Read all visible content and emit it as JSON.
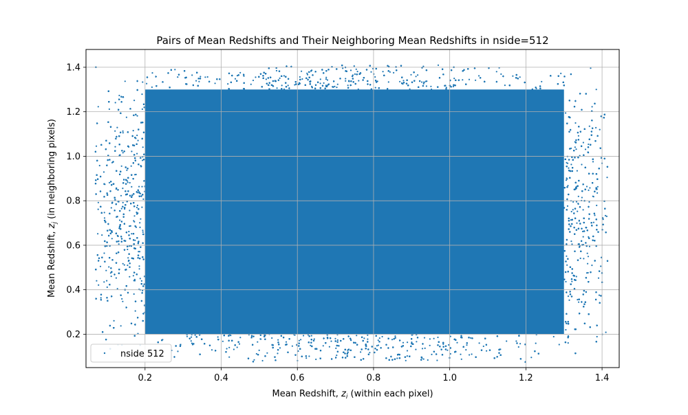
{
  "chart_data": {
    "type": "scatter",
    "title": "Pairs of Mean Redshifts and Their Neighboring Mean Redshifts in nside=512",
    "xlabel_main": "Mean Redshift, ",
    "xlabel_sym": "z",
    "xlabel_sub": "i",
    "xlabel_tail": " (within each pixel)",
    "ylabel_main": "Mean Redshift, ",
    "ylabel_sym": "z",
    "ylabel_sub": "j",
    "ylabel_tail": " (in neighboring pixels)",
    "xlim": [
      0.045,
      1.445
    ],
    "ylim": [
      0.05,
      1.48
    ],
    "x_ticks": [
      "0.2",
      "0.4",
      "0.6",
      "0.8",
      "1.0",
      "1.2",
      "1.4"
    ],
    "y_ticks": [
      "0.2",
      "0.4",
      "0.6",
      "0.8",
      "1.0",
      "1.2",
      "1.4"
    ],
    "grid": true,
    "legend": {
      "position": "lower-left",
      "label": "nside 512"
    },
    "series": [
      {
        "name": "nside 512",
        "color": "#1f77b4",
        "marker_size": 2,
        "x_range": [
          0.07,
          1.415
        ],
        "y_range": [
          0.075,
          1.41
        ],
        "dense_core_x": [
          0.2,
          1.3
        ],
        "dense_core_y": [
          0.2,
          1.3
        ]
      }
    ]
  }
}
